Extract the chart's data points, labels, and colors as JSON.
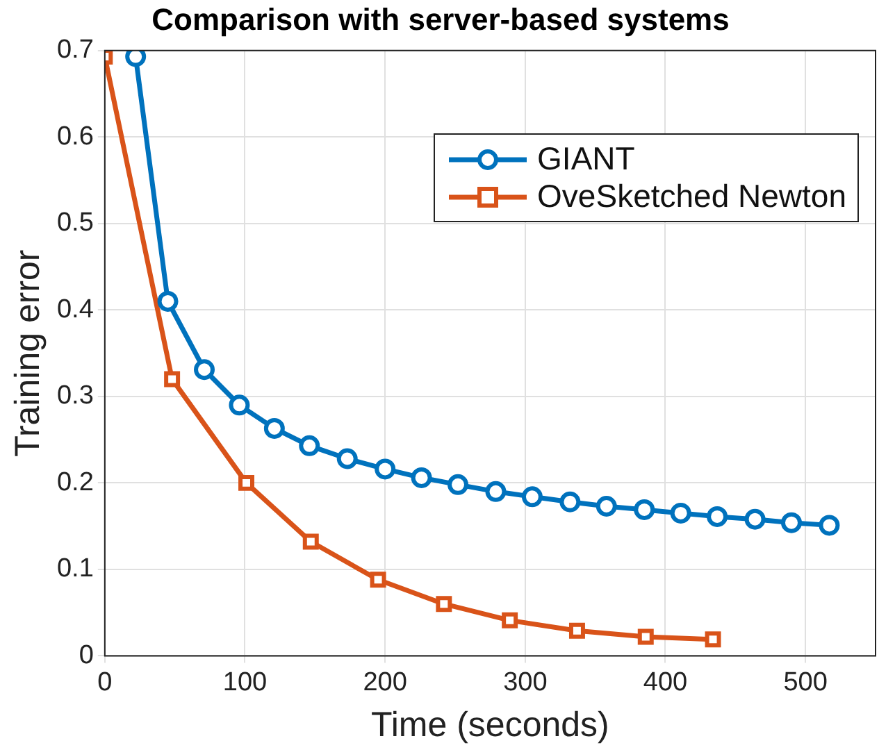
{
  "chart_data": {
    "type": "line",
    "title": "Comparison with server-based systems",
    "xlabel": "Time (seconds)",
    "ylabel": "Training error",
    "xlim": [
      0,
      550
    ],
    "xticks": [
      0,
      100,
      200,
      300,
      400,
      500
    ],
    "ylim": [
      0,
      0.7
    ],
    "yticks": [
      0,
      0.1,
      0.2,
      0.3,
      0.4,
      0.5,
      0.6,
      0.7
    ],
    "grid": true,
    "legend": "top right",
    "line_style": "solid",
    "series": [
      {
        "name": "GIANT",
        "color": "#0072bd",
        "marker": "circle",
        "x": [
          22,
          45,
          71,
          96,
          121,
          146,
          173,
          200,
          226,
          252,
          279,
          305,
          332,
          358,
          385,
          411,
          437,
          464,
          490,
          517
        ],
        "values": [
          0.693,
          0.41,
          0.331,
          0.29,
          0.263,
          0.243,
          0.228,
          0.216,
          0.206,
          0.198,
          0.19,
          0.184,
          0.178,
          0.173,
          0.169,
          0.165,
          0.161,
          0.158,
          0.154,
          0.151
        ]
      },
      {
        "name": "OveSketched Newton",
        "color": "#d95319",
        "marker": "square",
        "x": [
          0,
          48,
          101,
          147,
          195,
          242,
          289,
          337,
          386,
          434
        ],
        "values": [
          0.693,
          0.32,
          0.2,
          0.132,
          0.088,
          0.06,
          0.041,
          0.029,
          0.022,
          0.019
        ]
      }
    ]
  }
}
